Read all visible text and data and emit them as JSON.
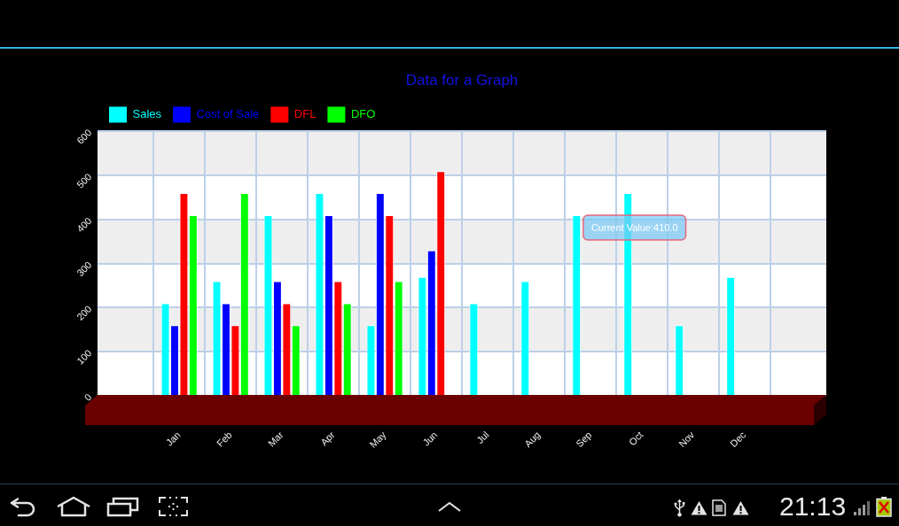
{
  "chart_data": {
    "type": "bar",
    "title": "Data for a Graph",
    "categories": [
      "Jan",
      "Feb",
      "Mar",
      "Apr",
      "May",
      "Jun",
      "Jul",
      "Aug",
      "Sep",
      "Oct",
      "Nov",
      "Dec"
    ],
    "series": [
      {
        "name": "Sales",
        "color": "#00ffff",
        "values": [
          210,
          260,
          410,
          460,
          160,
          270,
          210,
          260,
          410,
          460,
          160,
          270
        ]
      },
      {
        "name": "Cost of Sale",
        "color": "#0000ff",
        "values": [
          160,
          210,
          260,
          410,
          460,
          330,
          null,
          null,
          null,
          null,
          null,
          null
        ]
      },
      {
        "name": "DFL",
        "color": "#ff0000",
        "values": [
          460,
          160,
          210,
          260,
          410,
          510,
          null,
          null,
          null,
          null,
          null,
          null
        ]
      },
      {
        "name": "DFO",
        "color": "#00ff00",
        "values": [
          410,
          460,
          160,
          210,
          260,
          null,
          null,
          null,
          null,
          null,
          null,
          null
        ]
      }
    ],
    "ylim": [
      0,
      600
    ],
    "yticks": [
      0,
      100,
      200,
      300,
      400,
      500,
      600
    ],
    "grid": true,
    "legend": "top left",
    "annotations": [
      {
        "text": "Current Value:410.0",
        "x": "Sep",
        "y": 410
      },
      "21:13"
    ]
  }
}
